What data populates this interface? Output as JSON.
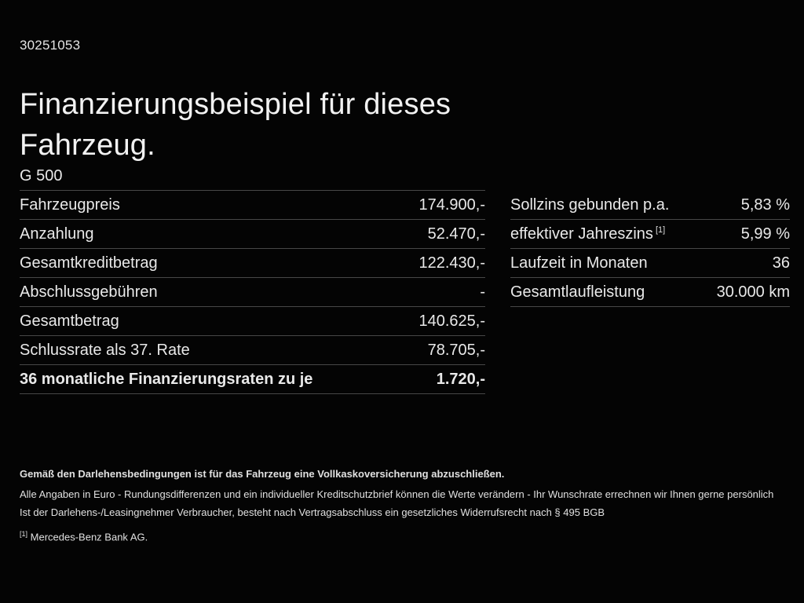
{
  "page": {
    "document_id": "30251053",
    "title": "Finanzierungsbeispiel für dieses Fahrzeug.",
    "model": "G 500"
  },
  "finance_table": {
    "rows": [
      {
        "label": "Fahrzeugpreis",
        "value": "174.900,-"
      },
      {
        "label": "Anzahlung",
        "value": "52.470,-"
      },
      {
        "label": "Gesamtkreditbetrag",
        "value": "122.430,-"
      },
      {
        "label": "Abschlussgebühren",
        "value": "-"
      },
      {
        "label": "Gesamtbetrag",
        "value": "140.625,-"
      },
      {
        "label": "Schlussrate als 37. Rate",
        "value": "78.705,-"
      },
      {
        "label": "36 monatliche Finanzierungsraten zu je",
        "value": "1.720,-"
      }
    ]
  },
  "conditions_table": {
    "rows": [
      {
        "label": "Sollzins gebunden p.a.",
        "value": "5,83 %"
      },
      {
        "label": "effektiver Jahreszins",
        "sup": "[1]",
        "value": "5,99 %"
      },
      {
        "label": "Laufzeit in Monaten",
        "value": "36"
      },
      {
        "label": "Gesamtlaufleistung",
        "value": "30.000 km"
      }
    ]
  },
  "footnotes": {
    "insurance_bold": "Gemäß den Darlehensbedingungen ist für das Fahrzeug eine Vollkaskoversicherung abzuschließen.",
    "line2": "Alle Angaben in Euro - Rundungsdifferenzen und ein individueller Kreditschutzbrief können die Werte verändern - Ihr Wunschrate errechnen wir Ihnen gerne persönlich",
    "line3": "Ist der Darlehens-/Leasingnehmer Verbraucher, besteht nach Vertragsabschluss ein gesetzliches Widerrufsrecht nach § 495 BGB",
    "ref_marker": "[1]",
    "ref_text": "Mercedes-Benz Bank AG."
  },
  "colors": {
    "background": "#040404",
    "text": "#e9e9e9",
    "divider": "#474747"
  }
}
